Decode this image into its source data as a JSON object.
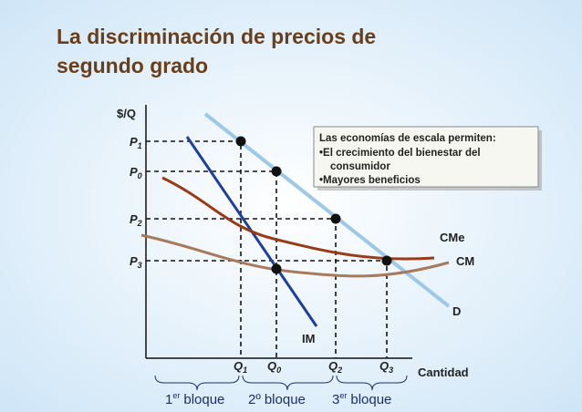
{
  "header": {
    "title_line1": "La discriminación de precios de",
    "title_line2": "segundo grado"
  },
  "axes": {
    "y_label": "$/Q",
    "x_label": "Cantidad"
  },
  "prices": [
    {
      "letter": "P",
      "sub": "1"
    },
    {
      "letter": "P",
      "sub": "0"
    },
    {
      "letter": "P",
      "sub": "2"
    },
    {
      "letter": "P",
      "sub": "3"
    }
  ],
  "quantities": [
    {
      "letter": "Q",
      "sub": "1"
    },
    {
      "letter": "Q",
      "sub": "0"
    },
    {
      "letter": "Q",
      "sub": "2"
    },
    {
      "letter": "Q",
      "sub": "3"
    }
  ],
  "curves": {
    "average_cost": "CMe",
    "marginal_cost": "CM",
    "demand": "D",
    "marginal_revenue": "IM"
  },
  "callout": {
    "lines": [
      "Las economías de escala permiten:",
      "•El crecimiento del bienestar del",
      "consumidor",
      "•Mayores beneficios"
    ]
  },
  "blocks": [
    {
      "num": "1",
      "sup": "er",
      "word": "bloque"
    },
    {
      "num": "2º",
      "word": "bloque"
    },
    {
      "num": "3",
      "sup": "er",
      "word": "bloque"
    }
  ]
}
